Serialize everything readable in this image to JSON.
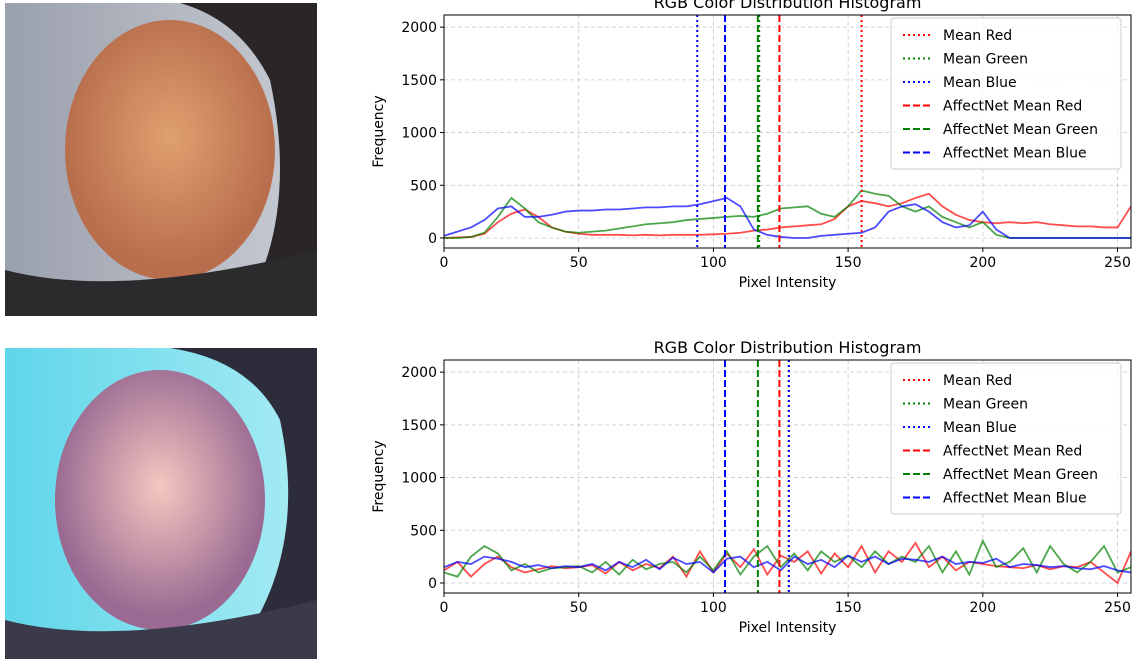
{
  "chart_data": [
    {
      "type": "line",
      "title": "RGB Color Distribution Histogram",
      "xlabel": "Pixel Intensity",
      "ylabel": "Frequency",
      "xlim": [
        0,
        255
      ],
      "ylim": [
        -95,
        2115
      ],
      "xticks": [
        0,
        50,
        100,
        150,
        200,
        250
      ],
      "yticks": [
        0,
        500,
        1000,
        1500,
        2000
      ],
      "grid": true,
      "legend": "upper right",
      "x": [
        0,
        5,
        10,
        15,
        20,
        25,
        30,
        35,
        40,
        45,
        50,
        55,
        60,
        65,
        70,
        75,
        80,
        85,
        90,
        95,
        100,
        105,
        110,
        115,
        120,
        125,
        130,
        135,
        140,
        145,
        150,
        155,
        160,
        165,
        170,
        175,
        180,
        185,
        190,
        195,
        200,
        205,
        210,
        215,
        220,
        225,
        230,
        235,
        240,
        245,
        250,
        255
      ],
      "series": [
        {
          "color": "#ff0000",
          "values": [
            0,
            5,
            10,
            40,
            150,
            230,
            270,
            200,
            100,
            60,
            40,
            30,
            30,
            30,
            25,
            30,
            25,
            30,
            30,
            30,
            35,
            40,
            50,
            70,
            80,
            100,
            110,
            120,
            130,
            180,
            300,
            350,
            330,
            300,
            330,
            380,
            420,
            300,
            220,
            170,
            150,
            140,
            150,
            140,
            150,
            130,
            120,
            110,
            110,
            100,
            100,
            300
          ]
        },
        {
          "color": "#008000",
          "values": [
            0,
            0,
            10,
            50,
            200,
            380,
            280,
            150,
            100,
            60,
            50,
            60,
            70,
            90,
            110,
            130,
            140,
            150,
            170,
            180,
            190,
            200,
            210,
            200,
            230,
            280,
            290,
            300,
            230,
            200,
            300,
            450,
            420,
            400,
            300,
            250,
            300,
            200,
            150,
            100,
            150,
            30,
            0,
            0,
            0,
            0,
            0,
            0,
            0,
            0,
            0,
            0
          ]
        },
        {
          "color": "#0000ff",
          "values": [
            20,
            60,
            100,
            170,
            280,
            300,
            200,
            200,
            220,
            250,
            260,
            260,
            270,
            270,
            280,
            290,
            290,
            300,
            300,
            320,
            350,
            380,
            300,
            80,
            30,
            10,
            0,
            0,
            20,
            30,
            40,
            50,
            100,
            250,
            300,
            320,
            250,
            150,
            100,
            120,
            250,
            80,
            0,
            0,
            0,
            0,
            0,
            0,
            0,
            0,
            0,
            0
          ]
        }
      ],
      "vlines": [
        {
          "name": "Mean Red",
          "color": "#ff0000",
          "style": "dotted",
          "x": 155
        },
        {
          "name": "Mean Green",
          "color": "#008000",
          "style": "dotted",
          "x": 117
        },
        {
          "name": "Mean Blue",
          "color": "#0000ff",
          "style": "dotted",
          "x": 94
        },
        {
          "name": "AffectNet Mean Red",
          "color": "#ff0000",
          "style": "dashed",
          "x": 124.5
        },
        {
          "name": "AffectNet Mean Green",
          "color": "#008000",
          "style": "dashed",
          "x": 116.5
        },
        {
          "name": "AffectNet Mean Blue",
          "color": "#0000ff",
          "style": "dashed",
          "x": 104.3
        }
      ]
    },
    {
      "type": "line",
      "title": "RGB Color Distribution Histogram",
      "xlabel": "Pixel Intensity",
      "ylabel": "Frequency",
      "xlim": [
        0,
        255
      ],
      "ylim": [
        -95,
        2115
      ],
      "xticks": [
        0,
        50,
        100,
        150,
        200,
        250
      ],
      "yticks": [
        0,
        500,
        1000,
        1500,
        2000
      ],
      "grid": true,
      "legend": "upper right",
      "x": [
        0,
        5,
        10,
        15,
        20,
        25,
        30,
        35,
        40,
        45,
        50,
        55,
        60,
        65,
        70,
        75,
        80,
        85,
        90,
        95,
        100,
        105,
        110,
        115,
        120,
        125,
        130,
        135,
        140,
        145,
        150,
        155,
        160,
        165,
        170,
        175,
        180,
        185,
        190,
        195,
        200,
        205,
        210,
        215,
        220,
        225,
        230,
        235,
        240,
        245,
        250,
        255
      ],
      "series": [
        {
          "color": "#ff0000",
          "values": [
            120,
            200,
            60,
            180,
            250,
            150,
            100,
            130,
            160,
            140,
            150,
            170,
            90,
            200,
            120,
            180,
            140,
            250,
            60,
            300,
            100,
            280,
            150,
            320,
            80,
            260,
            200,
            300,
            90,
            280,
            150,
            350,
            100,
            300,
            200,
            380,
            150,
            250,
            120,
            200,
            180,
            160,
            150,
            140,
            170,
            130,
            160,
            150,
            200,
            100,
            0,
            300
          ]
        },
        {
          "color": "#008000",
          "values": [
            100,
            60,
            250,
            350,
            280,
            120,
            180,
            100,
            140,
            150,
            160,
            100,
            200,
            80,
            220,
            130,
            180,
            200,
            100,
            250,
            120,
            300,
            80,
            250,
            350,
            150,
            280,
            120,
            300,
            200,
            260,
            150,
            300,
            180,
            250,
            200,
            350,
            100,
            300,
            80,
            400,
            150,
            200,
            330,
            100,
            350,
            180,
            100,
            200,
            350,
            100,
            150
          ]
        },
        {
          "color": "#0000ff",
          "values": [
            150,
            200,
            180,
            250,
            230,
            200,
            150,
            170,
            140,
            160,
            150,
            180,
            120,
            200,
            150,
            220,
            130,
            240,
            180,
            200,
            100,
            230,
            250,
            150,
            200,
            120,
            250,
            180,
            220,
            150,
            260,
            200,
            250,
            180,
            230,
            220,
            200,
            250,
            180,
            200,
            190,
            230,
            150,
            180,
            170,
            150,
            160,
            140,
            130,
            160,
            120,
            100
          ]
        }
      ],
      "vlines": [
        {
          "name": "Mean Red",
          "color": "#ff0000",
          "style": "dotted",
          "x": 128
        },
        {
          "name": "Mean Green",
          "color": "#008000",
          "style": "dotted",
          "x": 128
        },
        {
          "name": "Mean Blue",
          "color": "#0000ff",
          "style": "dotted",
          "x": 128
        },
        {
          "name": "AffectNet Mean Red",
          "color": "#ff0000",
          "style": "dashed",
          "x": 124.5
        },
        {
          "name": "AffectNet Mean Green",
          "color": "#008000",
          "style": "dashed",
          "x": 116.5
        },
        {
          "name": "AffectNet Mean Blue",
          "color": "#0000ff",
          "style": "dashed",
          "x": 104.3
        }
      ]
    }
  ]
}
